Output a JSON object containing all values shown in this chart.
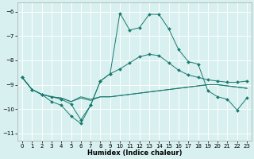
{
  "xlabel": "Humidex (Indice chaleur)",
  "bg_color": "#d8f0f0",
  "grid_color": "#ffffff",
  "line_color": "#1a7a6e",
  "xlim": [
    -0.5,
    23.5
  ],
  "ylim": [
    -11.3,
    -5.6
  ],
  "yticks": [
    -11,
    -10,
    -9,
    -8,
    -7,
    -6
  ],
  "xticks": [
    0,
    1,
    2,
    3,
    4,
    5,
    6,
    7,
    8,
    9,
    10,
    11,
    12,
    13,
    14,
    15,
    16,
    17,
    18,
    19,
    20,
    21,
    22,
    23
  ],
  "line1_x": [
    0,
    1,
    2,
    3,
    4,
    5,
    6,
    7,
    8,
    9,
    10,
    11,
    12,
    13,
    14,
    15,
    16,
    17,
    18,
    19,
    20,
    21,
    22,
    23
  ],
  "line1_y": [
    -8.7,
    -9.2,
    -9.4,
    -9.5,
    -9.55,
    -9.7,
    -9.5,
    -9.6,
    -9.5,
    -9.5,
    -9.45,
    -9.4,
    -9.35,
    -9.3,
    -9.25,
    -9.2,
    -9.15,
    -9.1,
    -9.05,
    -9.0,
    -9.0,
    -9.05,
    -9.1,
    -9.15
  ],
  "line2_x": [
    0,
    1,
    2,
    3,
    4,
    5,
    6,
    7,
    8,
    9,
    10,
    11,
    12,
    13,
    14,
    15,
    16,
    17,
    18,
    19,
    20,
    21,
    22,
    23
  ],
  "line2_y": [
    -8.7,
    -9.2,
    -9.4,
    -9.5,
    -9.55,
    -9.7,
    -9.55,
    -9.65,
    -9.5,
    -9.5,
    -9.45,
    -9.4,
    -9.35,
    -9.3,
    -9.25,
    -9.2,
    -9.15,
    -9.1,
    -9.05,
    -9.0,
    -9.0,
    -9.05,
    -9.1,
    -9.15
  ],
  "line3_x": [
    0,
    1,
    2,
    3,
    4,
    5,
    6,
    7,
    8,
    9,
    10,
    11,
    12,
    13,
    14,
    15,
    16,
    17,
    18,
    19,
    20,
    21,
    22,
    23
  ],
  "line3_y": [
    -8.7,
    -9.2,
    -9.4,
    -9.7,
    -9.85,
    -10.3,
    -10.6,
    -9.85,
    -8.85,
    -8.55,
    -8.35,
    -8.1,
    -7.85,
    -7.75,
    -7.8,
    -8.1,
    -8.4,
    -8.6,
    -8.7,
    -8.8,
    -8.85,
    -8.9,
    -8.9,
    -8.85
  ],
  "line4_x": [
    0,
    1,
    2,
    3,
    4,
    5,
    6,
    7,
    8,
    9,
    10,
    11,
    12,
    13,
    14,
    15,
    16,
    17,
    18,
    19,
    20,
    21,
    22,
    23
  ],
  "line4_y": [
    -8.7,
    -9.2,
    -9.4,
    -9.5,
    -9.6,
    -9.8,
    -10.45,
    -9.85,
    -8.85,
    -8.55,
    -6.05,
    -6.75,
    -6.65,
    -6.1,
    -6.1,
    -6.7,
    -7.55,
    -8.05,
    -8.15,
    -9.25,
    -9.5,
    -9.6,
    -10.05,
    -9.55
  ]
}
